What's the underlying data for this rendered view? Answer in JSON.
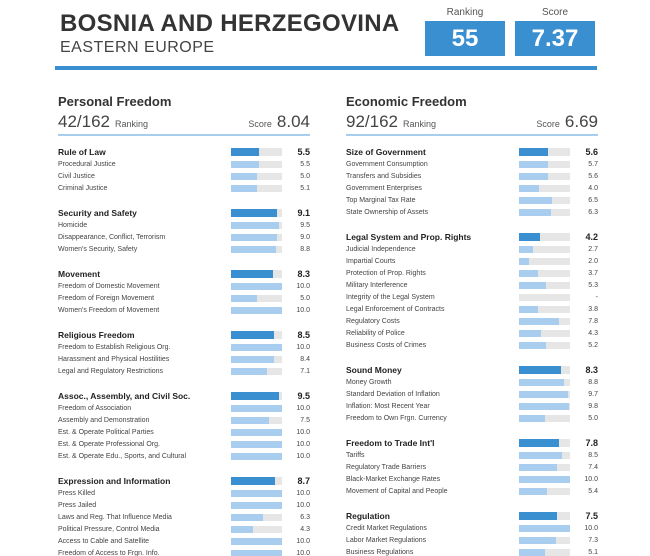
{
  "header": {
    "title": "BOSNIA AND HERZEGOVINA",
    "region": "EASTERN EUROPE",
    "ranking_label": "Ranking",
    "ranking": "55",
    "score_label": "Score",
    "score": "7.37"
  },
  "columns": [
    {
      "title": "Personal Freedom",
      "rank": "42/162",
      "rank_label": "Ranking",
      "score_label": "Score",
      "score": "8.04",
      "sections": [
        {
          "name": "Rule of Law",
          "value": "5.5",
          "items": [
            [
              "Procedural Justice",
              "5.5"
            ],
            [
              "Civil Justice",
              "5.0"
            ],
            [
              "Criminal Justice",
              "5.1"
            ]
          ]
        },
        {
          "name": "Security and Safety",
          "value": "9.1",
          "items": [
            [
              "Homicide",
              "9.5"
            ],
            [
              "Disappearance, Conflict, Terrorism",
              "9.0"
            ],
            [
              "Women's Security, Safety",
              "8.8"
            ]
          ]
        },
        {
          "name": "Movement",
          "value": "8.3",
          "items": [
            [
              "Freedom of Domestic Movement",
              "10.0"
            ],
            [
              "Freedom of Foreign Movement",
              "5.0"
            ],
            [
              "Women's Freedom of Movement",
              "10.0"
            ]
          ]
        },
        {
          "name": "Religious Freedom",
          "value": "8.5",
          "items": [
            [
              "Freedom to Establish Religious Org.",
              "10.0"
            ],
            [
              "Harassment and Physical Hostilities",
              "8.4"
            ],
            [
              "Legal and Regulatory Restrictions",
              "7.1"
            ]
          ]
        },
        {
          "name": "Assoc., Assembly, and Civil Soc.",
          "value": "9.5",
          "items": [
            [
              "Freedom of Association",
              "10.0"
            ],
            [
              "Assembly and Demonstration",
              "7.5"
            ],
            [
              "Est. & Operate Political Parties",
              "10.0"
            ],
            [
              "Est. & Operate Professional Org.",
              "10.0"
            ],
            [
              "Est. & Operate Edu., Sports, and Cultural",
              "10.0"
            ]
          ]
        },
        {
          "name": "Expression and Information",
          "value": "8.7",
          "items": [
            [
              "Press Killed",
              "10.0"
            ],
            [
              "Press Jailed",
              "10.0"
            ],
            [
              "Laws and Reg. That Influence Media",
              "6.3"
            ],
            [
              "Political Pressure, Control Media",
              "4.3"
            ],
            [
              "Access to Cable and Satellite",
              "10.0"
            ],
            [
              "Freedom of Access to Frgn. Info.",
              "10.0"
            ]
          ]
        }
      ]
    },
    {
      "title": "Economic Freedom",
      "rank": "92/162",
      "rank_label": "Ranking",
      "score_label": "Score",
      "score": "6.69",
      "sections": [
        {
          "name": "Size of Government",
          "value": "5.6",
          "items": [
            [
              "Government Consumption",
              "5.7"
            ],
            [
              "Transfers and Subsidies",
              "5.6"
            ],
            [
              "Government Enterprises",
              "4.0"
            ],
            [
              "Top Marginal Tax Rate",
              "6.5"
            ],
            [
              "State Ownership of Assets",
              "6.3"
            ]
          ]
        },
        {
          "name": "Legal System and Prop. Rights",
          "value": "4.2",
          "items": [
            [
              "Judicial Independence",
              "2.7"
            ],
            [
              "Impartial Courts",
              "2.0"
            ],
            [
              "Protection of Prop. Rights",
              "3.7"
            ],
            [
              "Military Interference",
              "5.3"
            ],
            [
              "Integrity of the Legal System",
              "-"
            ],
            [
              "Legal Enforcement of Contracts",
              "3.8"
            ],
            [
              "Regulatory Costs",
              "7.8"
            ],
            [
              "Reliability of Police",
              "4.3"
            ],
            [
              "Business Costs of Crimes",
              "5.2"
            ]
          ]
        },
        {
          "name": "Sound Money",
          "value": "8.3",
          "items": [
            [
              "Money Growth",
              "8.8"
            ],
            [
              "Standard Deviation of Inflation",
              "9.7"
            ],
            [
              "Inflation: Most Recent Year",
              "9.8"
            ],
            [
              "Freedom to Own Frgn. Currency",
              "5.0"
            ]
          ]
        },
        {
          "name": "Freedom to Trade Int'l",
          "value": "7.8",
          "items": [
            [
              "Tariffs",
              "8.5"
            ],
            [
              "Regulatory Trade Barriers",
              "7.4"
            ],
            [
              "Black-Market Exchange Rates",
              "10.0"
            ],
            [
              "Movement of Capital and People",
              "5.4"
            ]
          ]
        },
        {
          "name": "Regulation",
          "value": "7.5",
          "items": [
            [
              "Credit Market Regulations",
              "10.0"
            ],
            [
              "Labor Market Regulations",
              "7.3"
            ],
            [
              "Business Regulations",
              "5.1"
            ]
          ]
        }
      ]
    }
  ]
}
